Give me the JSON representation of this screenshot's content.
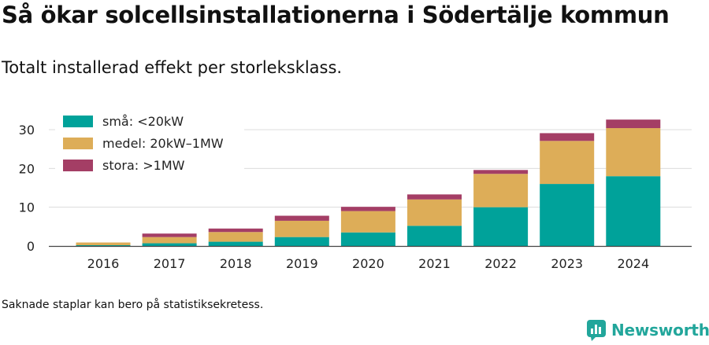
{
  "header": {
    "title": "Så ökar solcellsinstallationerna i Södertälje kommun",
    "subtitle": "Totalt installerad effekt per storleksklass."
  },
  "footnote": "Saknade staplar kan bero på statistiksekretess.",
  "brand": {
    "name": "Newsworthy",
    "icon": "newsworthy-logo-icon",
    "color": "#22a69b"
  },
  "chart_data": {
    "type": "bar",
    "stacked": true,
    "title": "",
    "xlabel": "",
    "ylabel": "",
    "categories": [
      "2016",
      "2017",
      "2018",
      "2019",
      "2020",
      "2021",
      "2022",
      "2023",
      "2024"
    ],
    "series": [
      {
        "name": "små: <20kW",
        "color": "#00a29a",
        "values": [
          0.2,
          0.7,
          1.1,
          2.3,
          3.5,
          5.2,
          10.0,
          16.0,
          18.0
        ]
      },
      {
        "name": "medel: 20kW–1MW",
        "color": "#ddad58",
        "values": [
          0.7,
          1.6,
          2.5,
          4.2,
          5.5,
          6.8,
          8.6,
          11.1,
          12.4
        ]
      },
      {
        "name": "stora: >1MW",
        "color": "#a43e65",
        "values": [
          0.0,
          0.9,
          0.9,
          1.3,
          1.1,
          1.3,
          1.0,
          2.0,
          2.2
        ]
      }
    ],
    "ylim": [
      0,
      33
    ],
    "yticks": [
      0,
      10,
      20,
      30
    ],
    "grid": true,
    "legend_position": "top-left"
  }
}
